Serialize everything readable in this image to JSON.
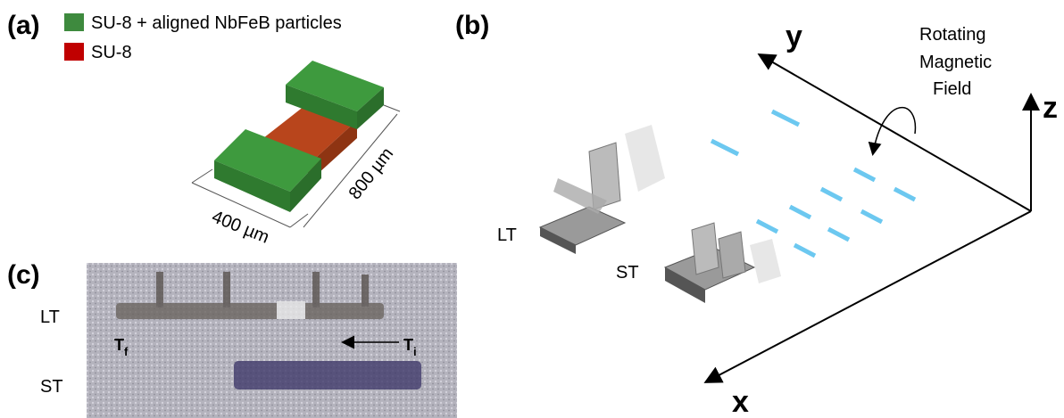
{
  "panel_a": {
    "label": "(a)",
    "legend": [
      "SU-8 + aligned NbFeB particles",
      "SU-8"
    ],
    "dimensions": [
      "400 µm",
      "800 µm"
    ]
  },
  "panel_b": {
    "label": "(b)",
    "axes": {
      "x": "x",
      "y": "y",
      "z": "z"
    },
    "field_label": [
      "Rotating",
      "Magnetic",
      "Field"
    ],
    "robots": [
      "LT",
      "ST"
    ]
  },
  "panel_c": {
    "label": "(c)",
    "rows": [
      "LT",
      "ST"
    ],
    "t_final": {
      "main": "T",
      "sub": "f"
    },
    "t_initial": {
      "main": "T",
      "sub": "i"
    }
  }
}
